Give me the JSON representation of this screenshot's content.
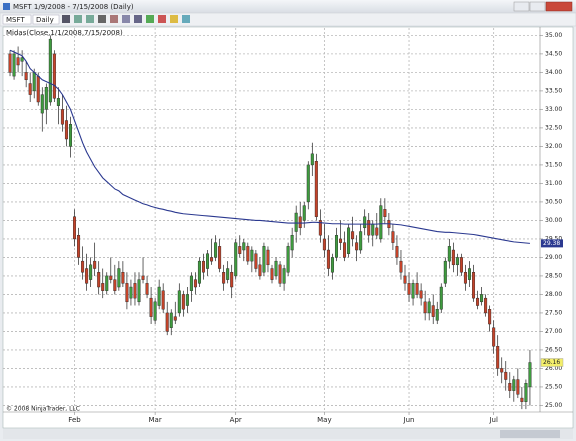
{
  "window": {
    "title": "MSFT 1/9/2008 - 7/15/2008 (Daily)",
    "symbol": "MSFT",
    "interval": "Daily"
  },
  "chart_data": {
    "type": "candlestick",
    "indicator_label": "Midas(Close,1/1/2008,7/15/2008)",
    "copyright": "© 2008 NinjaTrader, LLC",
    "up_color": "#3f9b3f",
    "down_color": "#c4432a",
    "line_color": "#2b3990",
    "grid": true,
    "ylim": [
      24.85,
      35.2
    ],
    "yticks": [
      {
        "value": 25,
        "label": "25.00"
      },
      {
        "value": 25.5,
        "label": "25.50"
      },
      {
        "value": 26,
        "label": "26.00"
      },
      {
        "value": 26.5,
        "label": "26.50"
      },
      {
        "value": 27,
        "label": "27.00"
      },
      {
        "value": 27.5,
        "label": "27.50"
      },
      {
        "value": 28,
        "label": "28.00"
      },
      {
        "value": 28.5,
        "label": "28.50"
      },
      {
        "value": 29,
        "label": "29.00"
      },
      {
        "value": 29.5,
        "label": "29.50"
      },
      {
        "value": 30,
        "label": "30.00"
      },
      {
        "value": 30.5,
        "label": "30.50"
      },
      {
        "value": 31,
        "label": "31.00"
      },
      {
        "value": 31.5,
        "label": "31.50"
      },
      {
        "value": 32,
        "label": "32.00"
      },
      {
        "value": 32.5,
        "label": "32.50"
      },
      {
        "value": 33,
        "label": "33.00"
      },
      {
        "value": 33.5,
        "label": "33.50"
      },
      {
        "value": 34,
        "label": "34.00"
      },
      {
        "value": 34.5,
        "label": "34.50"
      },
      {
        "value": 35,
        "label": "35.00"
      }
    ],
    "xlim": [
      -1,
      131
    ],
    "xticks": [
      {
        "value": 16,
        "label": "Feb"
      },
      {
        "value": 36,
        "label": "Mar"
      },
      {
        "value": 56,
        "label": "Apr"
      },
      {
        "value": 78,
        "label": "May"
      },
      {
        "value": 99,
        "label": "Jun"
      },
      {
        "value": 120,
        "label": "Jul"
      }
    ],
    "open": [
      34.5,
      33.9,
      34.4,
      34.3,
      34.0,
      33.7,
      33.5,
      33.9,
      32.9,
      33.0,
      33.2,
      34.5,
      33.1,
      33.0,
      32.7,
      32.0,
      30.1,
      29.6,
      28.9,
      28.7,
      28.4,
      28.9,
      28.6,
      28.3,
      28.1,
      28.5,
      28.4,
      28.2,
      28.6,
      28.3,
      27.9,
      28.3,
      27.8,
      28.5,
      28.3,
      27.9,
      27.3,
      27.7,
      28.1,
      27.5,
      27.1,
      27.4,
      27.5,
      28.0,
      27.7,
      28.1,
      28.4,
      28.3,
      28.9,
      28.7,
      29.0,
      29.0,
      29.3,
      28.6,
      28.4,
      28.6,
      28.5,
      29.3,
      29.2,
      29.3,
      28.9,
      29.1,
      28.8,
      28.6,
      29.2,
      28.7,
      28.5,
      28.8,
      28.3,
      28.6,
      29.2,
      29.7,
      30.1,
      30.0,
      30.5,
      31.5,
      31.6,
      30.0,
      29.5,
      29.2,
      28.6,
      29.0,
      29.5,
      29.4,
      29.1,
      29.7,
      29.4,
      29.2,
      29.8,
      30.0,
      29.6,
      29.8,
      29.5,
      30.3,
      30.0,
      29.7,
      29.3,
      28.9,
      28.5,
      28.3,
      27.9,
      28.3,
      28.1,
      27.8,
      27.5,
      27.7,
      27.3,
      27.6,
      28.3,
      28.9,
      29.2,
      28.8,
      29.0,
      28.6,
      28.4,
      28.6,
      27.9,
      27.8,
      27.9,
      27.6,
      27.1,
      26.6,
      26.0,
      25.9,
      25.6,
      25.4,
      25.7,
      25.2,
      25.1,
      25.5
    ],
    "high": [
      34.6,
      34.6,
      34.7,
      34.6,
      34.3,
      34.0,
      34.1,
      34.0,
      33.6,
      33.7,
      35.0,
      34.6,
      33.6,
      33.4,
      33.1,
      32.8,
      30.3,
      29.8,
      29.3,
      29.1,
      29.0,
      29.4,
      28.9,
      28.7,
      28.6,
      29.0,
      28.8,
      28.9,
      28.9,
      28.6,
      28.4,
      28.6,
      28.6,
      29.0,
      28.5,
      28.2,
      27.9,
      28.4,
      28.3,
      27.8,
      27.6,
      27.8,
      28.3,
      28.1,
      28.2,
      28.6,
      28.6,
      29.0,
      29.1,
      29.2,
      29.5,
      29.6,
      29.5,
      28.8,
      28.9,
      28.8,
      29.5,
      29.6,
      29.5,
      29.4,
      29.3,
      29.2,
      29.0,
      29.4,
      29.3,
      28.8,
      29.0,
      28.9,
      28.8,
      29.4,
      29.8,
      30.4,
      30.5,
      30.5,
      31.6,
      32.1,
      31.8,
      30.3,
      29.9,
      29.6,
      29.1,
      29.8,
      30.0,
      29.7,
      29.9,
      30.1,
      29.6,
      29.9,
      30.3,
      30.2,
      30.0,
      30.2,
      30.6,
      30.6,
      30.2,
      29.9,
      29.6,
      29.2,
      28.8,
      28.6,
      28.4,
      28.6,
      28.3,
      28.1,
      27.9,
      28.0,
      27.8,
      28.3,
      29.0,
      29.5,
      29.4,
      29.1,
      29.1,
      28.8,
      28.9,
      28.8,
      28.1,
      28.2,
      28.0,
      27.7,
      27.3,
      26.9,
      26.3,
      26.2,
      25.9,
      25.8,
      26.0,
      25.5,
      25.7,
      26.5
    ],
    "low": [
      33.9,
      33.8,
      34.0,
      33.9,
      33.6,
      33.2,
      33.3,
      33.1,
      32.4,
      32.6,
      33.1,
      33.2,
      32.6,
      32.4,
      32.0,
      31.7,
      29.3,
      28.8,
      28.4,
      28.1,
      28.2,
      28.5,
      28.0,
      27.9,
      28.0,
      28.3,
      28.0,
      28.1,
      28.2,
      27.6,
      27.7,
      27.7,
      27.7,
      28.3,
      27.9,
      27.2,
      27.2,
      27.6,
      27.5,
      26.9,
      26.9,
      27.2,
      27.4,
      27.4,
      27.5,
      27.8,
      28.0,
      28.2,
      28.4,
      28.5,
      28.8,
      28.9,
      28.6,
      28.1,
      28.3,
      27.9,
      28.4,
      29.0,
      28.9,
      28.8,
      28.6,
      28.6,
      28.4,
      28.5,
      28.6,
      28.3,
      28.4,
      28.2,
      28.1,
      28.5,
      29.0,
      29.4,
      29.6,
      29.8,
      30.3,
      31.2,
      30.0,
      29.4,
      29.0,
      28.5,
      28.4,
      28.9,
      29.2,
      28.9,
      29.0,
      29.3,
      28.9,
      29.1,
      29.6,
      29.4,
      29.3,
      29.5,
      29.4,
      29.9,
      29.6,
      29.2,
      28.8,
      28.4,
      28.1,
      27.8,
      27.7,
      27.9,
      27.7,
      27.3,
      27.3,
      27.2,
      27.2,
      27.5,
      28.2,
      28.7,
      28.6,
      28.5,
      28.5,
      28.1,
      28.2,
      27.8,
      27.6,
      27.7,
      27.4,
      27.0,
      26.4,
      25.8,
      25.6,
      25.4,
      25.2,
      25.1,
      25.2,
      24.9,
      24.9,
      25.0
    ],
    "close": [
      34.0,
      34.5,
      34.2,
      34.4,
      33.8,
      33.4,
      34.0,
      33.2,
      33.4,
      33.6,
      34.9,
      33.3,
      33.3,
      32.6,
      32.2,
      32.6,
      29.5,
      29.0,
      28.6,
      28.3,
      28.8,
      28.7,
      28.2,
      28.1,
      28.5,
      28.4,
      28.1,
      28.7,
      28.3,
      27.8,
      28.2,
      27.9,
      28.4,
      28.4,
      28.0,
      27.4,
      27.8,
      28.2,
      27.6,
      27.0,
      27.5,
      27.3,
      28.1,
      27.6,
      28.0,
      28.5,
      28.2,
      28.9,
      28.6,
      29.1,
      28.9,
      29.4,
      28.7,
      28.3,
      28.7,
      28.2,
      29.4,
      29.1,
      29.4,
      28.9,
      29.2,
      28.7,
      28.5,
      29.3,
      28.8,
      28.4,
      28.9,
      28.3,
      28.7,
      29.3,
      29.6,
      30.2,
      29.8,
      30.4,
      31.5,
      31.8,
      30.1,
      29.6,
      29.2,
      28.7,
      29.0,
      29.6,
      29.4,
      29.0,
      29.8,
      29.5,
      29.2,
      29.7,
      30.1,
      29.6,
      29.9,
      29.6,
      30.4,
      30.1,
      29.8,
      29.4,
      29.0,
      28.6,
      28.3,
      28.0,
      28.3,
      28.0,
      27.9,
      27.5,
      27.8,
      27.4,
      27.6,
      28.2,
      28.9,
      29.3,
      28.8,
      29.0,
      28.6,
      28.3,
      28.7,
      27.9,
      27.7,
      28.0,
      27.5,
      27.2,
      26.6,
      26.0,
      25.9,
      25.7,
      25.4,
      25.7,
      25.3,
      25.1,
      25.6,
      26.16
    ],
    "midas": [
      34.6,
      34.55,
      34.5,
      34.45,
      34.3,
      34.1,
      34.0,
      33.9,
      33.8,
      33.75,
      33.7,
      33.65,
      33.55,
      33.4,
      33.2,
      33.0,
      32.7,
      32.4,
      32.1,
      31.85,
      31.65,
      31.45,
      31.3,
      31.15,
      31.05,
      30.95,
      30.85,
      30.8,
      30.7,
      30.65,
      30.6,
      30.55,
      30.5,
      30.45,
      30.42,
      30.38,
      30.35,
      30.32,
      30.3,
      30.27,
      30.25,
      30.22,
      30.2,
      30.18,
      30.17,
      30.16,
      30.15,
      30.14,
      30.13,
      30.12,
      30.11,
      30.1,
      30.09,
      30.08,
      30.07,
      30.06,
      30.05,
      30.04,
      30.03,
      30.02,
      30.01,
      30.0,
      30.0,
      29.99,
      29.98,
      29.97,
      29.96,
      29.95,
      29.94,
      29.93,
      29.93,
      29.93,
      29.93,
      29.93,
      29.94,
      29.95,
      29.95,
      29.94,
      29.93,
      29.92,
      29.91,
      29.91,
      29.91,
      29.9,
      29.9,
      29.9,
      29.9,
      29.9,
      29.9,
      29.9,
      29.9,
      29.9,
      29.91,
      29.91,
      29.91,
      29.9,
      29.89,
      29.88,
      29.86,
      29.84,
      29.82,
      29.8,
      29.78,
      29.76,
      29.74,
      29.72,
      29.7,
      29.69,
      29.68,
      29.68,
      29.67,
      29.66,
      29.65,
      29.64,
      29.63,
      29.62,
      29.6,
      29.58,
      29.56,
      29.54,
      29.52,
      29.5,
      29.48,
      29.46,
      29.44,
      29.42,
      29.41,
      29.4,
      29.39,
      29.38
    ]
  }
}
